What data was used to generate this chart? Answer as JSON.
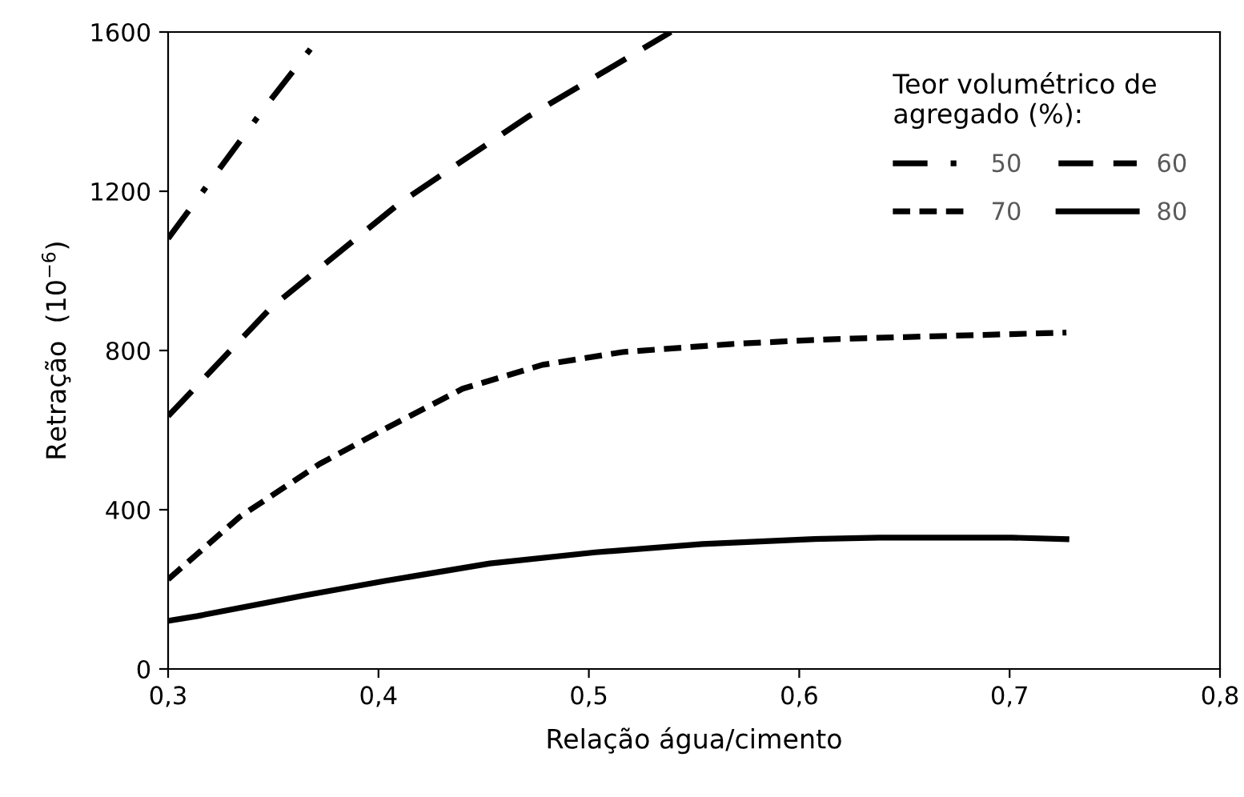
{
  "chart_data": {
    "type": "line",
    "xlabel": "Relação água/cimento",
    "ylabel": "Retração  (10$^{−6}$)",
    "legend_title": "Teor volumétrico de\nagregado (%):",
    "legend": "top right",
    "grid": false,
    "marker": "none",
    "xlim": [
      0.3,
      0.8
    ],
    "xticks": [
      {
        "value": 0.3,
        "label": "0,3"
      },
      {
        "value": 0.4,
        "label": "0,4"
      },
      {
        "value": 0.5,
        "label": "0,5"
      },
      {
        "value": 0.6,
        "label": "0,6"
      },
      {
        "value": 0.7,
        "label": "0,7"
      },
      {
        "value": 0.8,
        "label": "0,8"
      }
    ],
    "ylim": [
      0,
      1600
    ],
    "yticks": [
      0,
      400,
      800,
      1200,
      1600
    ],
    "series": [
      {
        "name": "50",
        "color": "#000000",
        "line_style": "dashdot",
        "x": [
          0.3,
          0.346,
          0.374
        ],
        "values": [
          1081,
          1411,
          1600
        ]
      },
      {
        "name": "60",
        "color": "#000000",
        "line_style": "dashed",
        "x": [
          0.3,
          0.349,
          0.41,
          0.471,
          0.539
        ],
        "values": [
          635,
          908,
          1170,
          1387,
          1600
        ]
      },
      {
        "name": "70",
        "color": "#000000",
        "line_style": "dotted",
        "x": [
          0.3,
          0.334,
          0.372,
          0.403,
          0.44,
          0.478,
          0.516,
          0.567,
          0.605,
          0.625,
          0.727
        ],
        "values": [
          225,
          382,
          515,
          603,
          704,
          764,
          796,
          816,
          826,
          830,
          845
        ]
      },
      {
        "name": "80",
        "color": "#000000",
        "line_style": "solid",
        "x": [
          0.3,
          0.314,
          0.365,
          0.403,
          0.453,
          0.503,
          0.554,
          0.605,
          0.638,
          0.701,
          0.727
        ],
        "values": [
          121,
          133,
          185,
          221,
          265,
          293,
          314,
          326,
          330,
          330,
          326
        ]
      }
    ]
  }
}
